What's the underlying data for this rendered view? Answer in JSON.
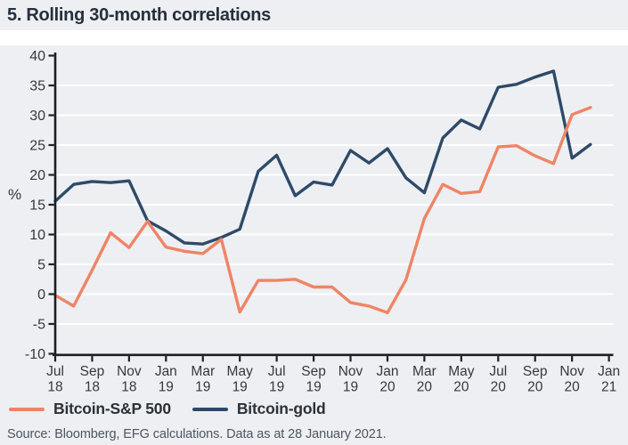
{
  "title": "5. Rolling 30-month correlations",
  "ylabel": "%",
  "source": "Source: Bloomberg, EFG calculations. Data as at 28 January 2021.",
  "colors": {
    "panel_bg": "#EDEFF2",
    "grid": "#FFFFFF",
    "axis": "#1B1E22",
    "tick_text": "#35393E",
    "title_text": "#262F3D",
    "source_text": "#4D5661",
    "series_sp500": "#EF8466",
    "series_gold": "#2E4A68"
  },
  "chart_data": {
    "type": "line",
    "title": "5. Rolling 30-month correlations",
    "xlabel": "",
    "ylabel": "%",
    "ylim": [
      -10,
      40
    ],
    "ytick_step": 5,
    "grid": "horizontal",
    "legend_position": "bottom-left",
    "x": [
      "Jul 18",
      "Aug 18",
      "Sep 18",
      "Oct 18",
      "Nov 18",
      "Dec 18",
      "Jan 19",
      "Feb 19",
      "Mar 19",
      "Apr 19",
      "May 19",
      "Jun 19",
      "Jul 19",
      "Aug 19",
      "Sep 19",
      "Oct 19",
      "Nov 19",
      "Dec 19",
      "Jan 20",
      "Feb 20",
      "Mar 20",
      "Apr 20",
      "May 20",
      "Jun 20",
      "Jul 20",
      "Aug 20",
      "Sep 20",
      "Oct 20",
      "Nov 20",
      "Dec 20"
    ],
    "xticks": [
      [
        "Jul",
        "18"
      ],
      [
        "Sep",
        "18"
      ],
      [
        "Nov",
        "18"
      ],
      [
        "Jan",
        "19"
      ],
      [
        "Mar",
        "19"
      ],
      [
        "May",
        "19"
      ],
      [
        "Jul",
        "19"
      ],
      [
        "Sep",
        "19"
      ],
      [
        "Nov",
        "19"
      ],
      [
        "Jan",
        "20"
      ],
      [
        "Mar",
        "20"
      ],
      [
        "May",
        "20"
      ],
      [
        "Jul",
        "20"
      ],
      [
        "Sep",
        "20"
      ],
      [
        "Nov",
        "20"
      ],
      [
        "Jan",
        "21"
      ]
    ],
    "series": [
      {
        "name": "Bitcoin-S&P 500",
        "slug": "bitcoin-sp500",
        "color": "#EF8466",
        "values": [
          -0.2,
          -2,
          4,
          10.3,
          7.8,
          12.2,
          7.9,
          7.2,
          6.8,
          9.2,
          -3,
          2.3,
          2.3,
          2.5,
          1.2,
          1.2,
          -1.4,
          -2,
          -3.1,
          2.4,
          12.7,
          18.4,
          16.9,
          17.2,
          24.7,
          24.9,
          23.2,
          21.9,
          30.1,
          31.3
        ]
      },
      {
        "name": "Bitcoin-gold",
        "slug": "bitcoin-gold",
        "color": "#2E4A68",
        "values": [
          15.6,
          18.4,
          18.9,
          18.7,
          19,
          12.3,
          10.6,
          8.6,
          8.4,
          9.5,
          10.9,
          20.6,
          23.3,
          16.5,
          18.8,
          18.3,
          24.1,
          22,
          24.4,
          19.5,
          17,
          26.2,
          29.2,
          27.7,
          34.7,
          35.2,
          36.4,
          37.4,
          22.8,
          25.1
        ]
      }
    ]
  }
}
